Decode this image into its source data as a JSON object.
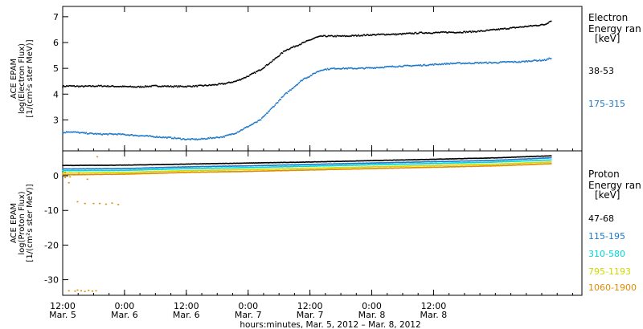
{
  "chart_data": [
    {
      "type": "scatter",
      "panel": "electron",
      "ylabel_lines": [
        "ACE EPAM",
        "log(Electron Flux)",
        "[1/(cm²s ster MeV)]"
      ],
      "ylim": [
        1.8,
        7.4
      ],
      "yticks": [
        3,
        4,
        5,
        6,
        7
      ],
      "legend": {
        "title_line1": "Electron",
        "title_line2": "Energy ran",
        "unit": "[keV]",
        "placement": "right"
      },
      "series": [
        {
          "name": "38-53",
          "color": "#000000",
          "x": [
            0,
            0.05,
            0.15,
            0.3,
            0.45,
            0.6,
            0.75,
            0.9,
            1.0,
            1.1,
            1.2,
            1.3,
            1.4,
            1.5,
            1.6,
            1.7,
            1.8,
            1.9,
            1.95,
            2.0,
            2.05,
            2.1,
            2.2,
            2.3,
            2.4,
            2.5,
            2.6,
            2.7,
            2.8,
            2.9,
            3.0,
            3.1,
            3.2,
            3.3,
            3.4,
            3.5,
            3.6,
            3.7,
            3.8,
            3.9,
            3.95
          ],
          "y": [
            4.3,
            4.32,
            4.3,
            4.32,
            4.3,
            4.28,
            4.32,
            4.3,
            4.3,
            4.32,
            4.35,
            4.4,
            4.5,
            4.7,
            4.95,
            5.3,
            5.7,
            5.9,
            6.0,
            6.1,
            6.2,
            6.25,
            6.25,
            6.25,
            6.28,
            6.3,
            6.32,
            6.32,
            6.35,
            6.38,
            6.38,
            6.4,
            6.4,
            6.42,
            6.45,
            6.5,
            6.55,
            6.6,
            6.65,
            6.7,
            6.85
          ]
        },
        {
          "name": "175-315",
          "color": "#1e78c8",
          "x": [
            0,
            0.05,
            0.15,
            0.3,
            0.45,
            0.6,
            0.75,
            0.9,
            1.0,
            1.1,
            1.2,
            1.3,
            1.4,
            1.5,
            1.6,
            1.7,
            1.8,
            1.9,
            1.95,
            2.0,
            2.05,
            2.1,
            2.2,
            2.3,
            2.4,
            2.5,
            2.6,
            2.7,
            2.8,
            2.9,
            3.0,
            3.1,
            3.2,
            3.3,
            3.4,
            3.5,
            3.6,
            3.7,
            3.8,
            3.9,
            3.95
          ],
          "y": [
            2.5,
            2.55,
            2.5,
            2.45,
            2.45,
            2.4,
            2.35,
            2.3,
            2.25,
            2.25,
            2.3,
            2.35,
            2.5,
            2.75,
            3.0,
            3.5,
            4.0,
            4.4,
            4.6,
            4.7,
            4.85,
            4.95,
            5.0,
            5.0,
            5.0,
            5.02,
            5.05,
            5.08,
            5.1,
            5.12,
            5.15,
            5.18,
            5.2,
            5.2,
            5.22,
            5.22,
            5.25,
            5.25,
            5.3,
            5.32,
            5.4
          ]
        }
      ]
    },
    {
      "type": "scatter",
      "panel": "proton",
      "ylabel_lines": [
        "ACE EPAM",
        "log(Proton Flux)",
        "[1/(cm²s ster MeV)]"
      ],
      "ylim": [
        -34.5,
        7.2
      ],
      "yticks": [
        -30,
        -20,
        -10,
        0
      ],
      "legend": {
        "title_line1": "Proton",
        "title_line2": "Energy ran",
        "unit": "[keV]",
        "placement": "right"
      },
      "series": [
        {
          "name": "47-68",
          "color": "#000000",
          "x": [
            0,
            0.5,
            1.0,
            1.5,
            2.0,
            2.5,
            3.0,
            3.5,
            3.95
          ],
          "y": [
            3.0,
            3.1,
            3.4,
            3.7,
            4.0,
            4.4,
            4.8,
            5.2,
            5.8
          ]
        },
        {
          "name": "115-195",
          "color": "#1e78c8",
          "x": [
            0,
            0.5,
            1.0,
            1.5,
            2.0,
            2.5,
            3.0,
            3.5,
            3.95
          ],
          "y": [
            2.0,
            2.1,
            2.6,
            2.9,
            3.3,
            3.7,
            4.1,
            4.5,
            5.2
          ]
        },
        {
          "name": "310-580",
          "color": "#00d8d8",
          "x": [
            0,
            0.5,
            1.0,
            1.5,
            2.0,
            2.5,
            3.0,
            3.5,
            3.95
          ],
          "y": [
            1.5,
            1.6,
            2.1,
            2.4,
            2.8,
            3.2,
            3.6,
            4.0,
            4.6
          ]
        },
        {
          "name": "795-1193",
          "color": "#d0d800",
          "x": [
            0,
            0.5,
            1.0,
            1.5,
            2.0,
            2.5,
            3.0,
            3.5,
            3.95
          ],
          "y": [
            0.8,
            1.0,
            1.5,
            1.8,
            2.2,
            2.6,
            3.0,
            3.4,
            4.0
          ]
        },
        {
          "name": "1060-1900",
          "color": "#e08c00",
          "x": [
            0,
            0.5,
            1.0,
            1.5,
            2.0,
            2.5,
            3.0,
            3.5,
            3.95
          ],
          "y": [
            0.3,
            0.5,
            1.0,
            1.3,
            1.7,
            2.1,
            2.5,
            2.9,
            3.5
          ]
        }
      ],
      "sparse_points": {
        "color": "#e08c00",
        "x": [
          0.02,
          0.05,
          0.12,
          0.18,
          0.25,
          0.3,
          0.35,
          0.4,
          0.45,
          0.28,
          0.05,
          0.1,
          0.12,
          0.15,
          0.18,
          0.21,
          0.24,
          0.27,
          0.02,
          0.06,
          0.13,
          0.2
        ],
        "y": [
          -0.5,
          -2.0,
          -7.5,
          -8.0,
          -8.0,
          -8.0,
          -8.2,
          -7.9,
          -8.3,
          5.5,
          -33.2,
          -33.3,
          -33.0,
          -33.2,
          -33.4,
          -33.1,
          -33.3,
          -33.2,
          1.0,
          -0.3,
          0.8,
          -1.0
        ]
      }
    }
  ],
  "xaxis": {
    "xlim": [
      0,
      4.2
    ],
    "ticks": [
      {
        "x": 0.0,
        "time": "12:00",
        "date": "Mar. 5"
      },
      {
        "x": 0.5,
        "time": "0:00",
        "date": "Mar. 6"
      },
      {
        "x": 1.0,
        "time": "12:00",
        "date": "Mar. 6"
      },
      {
        "x": 1.5,
        "time": "0:00",
        "date": "Mar. 7"
      },
      {
        "x": 2.0,
        "time": "12:00",
        "date": "Mar. 7"
      },
      {
        "x": 2.5,
        "time": "0:00",
        "date": "Mar. 8"
      },
      {
        "x": 3.0,
        "time": "12:00",
        "date": "Mar. 8"
      }
    ],
    "label": "hours:minutes, Mar.  5, 2012 – Mar.  8, 2012"
  }
}
